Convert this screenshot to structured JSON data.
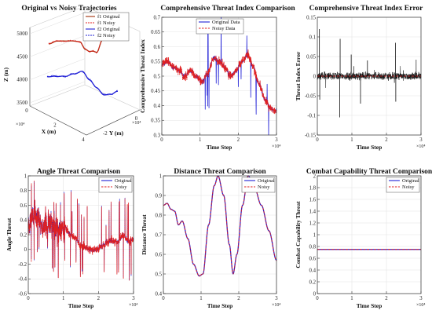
{
  "colors": {
    "blue": "#1f1fd6",
    "red": "#e02020",
    "darkred": "#a0300a",
    "black": "#111111",
    "grid": "#e4e4e4"
  },
  "chart_data": [
    {
      "id": "traj",
      "type": "line3d",
      "title": "Original vs Noisy Trajectories",
      "xlabel": "X (m)",
      "ylabel": "Y (m)",
      "zlabel": "Z (m)",
      "x_ticks": [
        "0",
        "2",
        "4"
      ],
      "x_exp": "×10⁴",
      "y_ticks": [
        "-2",
        "0"
      ],
      "y_exp": "×10⁴",
      "z_ticks": [
        "3500",
        "4000",
        "4500",
        "5000"
      ],
      "zlim": [
        3500,
        5000
      ],
      "legend": {
        "loc": "top-right",
        "entries": [
          "f1 Original",
          "f1 Noisy",
          "f2 Original",
          "f2 Noisy"
        ]
      },
      "series": [
        {
          "name": "f1 Original",
          "color": "darkred",
          "t": [
            0.0,
            0.15,
            0.28,
            0.42,
            0.55,
            0.65,
            0.72,
            0.78,
            0.85,
            0.95,
            1.0
          ],
          "z": [
            4780,
            4850,
            4860,
            4870,
            4860,
            4700,
            4660,
            4670,
            4650,
            4920,
            4970
          ]
        },
        {
          "name": "f1 Noisy",
          "color": "red",
          "t": [
            0.0,
            0.15,
            0.28,
            0.42,
            0.55,
            0.65,
            0.72,
            0.78,
            0.85,
            0.95,
            1.0
          ],
          "z": [
            4790,
            4860,
            4850,
            4880,
            4855,
            4710,
            4650,
            4680,
            4640,
            4930,
            4960
          ]
        },
        {
          "name": "f2 Original",
          "color": "blue",
          "t": [
            0.0,
            0.12,
            0.25,
            0.38,
            0.5,
            0.6,
            0.7,
            0.8,
            0.9,
            1.0
          ],
          "z": [
            4000,
            4050,
            4100,
            4200,
            4300,
            4150,
            4020,
            3900,
            3950,
            4050
          ]
        },
        {
          "name": "f2 Noisy",
          "color": "blue",
          "t": [
            0.0,
            0.12,
            0.25,
            0.38,
            0.5,
            0.6,
            0.7,
            0.8,
            0.9,
            1.0
          ],
          "z": [
            4010,
            4060,
            4090,
            4210,
            4290,
            4160,
            4010,
            3910,
            3940,
            4060
          ]
        }
      ]
    },
    {
      "id": "comp",
      "type": "line",
      "title": "Comprehensive Threat Index Comparison",
      "xlabel": "Time Step",
      "ylabel": "Comprehensive Threat Index",
      "xlim": [
        0,
        30000
      ],
      "ylim": [
        0.3,
        0.7
      ],
      "x_ticks": [
        "0",
        "1",
        "2",
        "3"
      ],
      "x_exp": "×10⁴",
      "y_ticks": [
        "0.3",
        "0.35",
        "0.4",
        "0.45",
        "0.5",
        "0.55",
        "0.6",
        "0.65",
        "0.7"
      ],
      "legend": {
        "loc": "top-center",
        "entries": [
          "Original Data",
          "Noisy Data"
        ]
      },
      "series": [
        {
          "name": "Original Data",
          "color": "blue",
          "x": [
            0,
            1500,
            3000,
            4500,
            6000,
            7500,
            9000,
            10500,
            12000,
            13500,
            15000,
            16500,
            18000,
            19500,
            21000,
            22500,
            24000,
            25500,
            27000,
            28500,
            30000
          ],
          "y": [
            0.54,
            0.55,
            0.53,
            0.52,
            0.5,
            0.52,
            0.5,
            0.48,
            0.51,
            0.56,
            0.55,
            0.53,
            0.5,
            0.52,
            0.55,
            0.57,
            0.53,
            0.47,
            0.42,
            0.39,
            0.38
          ]
        },
        {
          "name": "Noisy Data",
          "color": "red",
          "x": [
            0,
            1500,
            3000,
            4500,
            6000,
            7500,
            9000,
            10500,
            12000,
            13500,
            15000,
            16500,
            18000,
            19500,
            21000,
            22500,
            24000,
            25500,
            27000,
            28500,
            30000
          ],
          "y": [
            0.54,
            0.55,
            0.53,
            0.52,
            0.5,
            0.52,
            0.5,
            0.48,
            0.51,
            0.56,
            0.55,
            0.53,
            0.5,
            0.52,
            0.55,
            0.57,
            0.53,
            0.47,
            0.42,
            0.39,
            0.38
          ]
        }
      ]
    },
    {
      "id": "err",
      "type": "line",
      "title": "Comprehensive Threat Index Error",
      "xlabel": "Time Step",
      "ylabel": "Threat Index Error",
      "xlim": [
        0,
        30000
      ],
      "ylim": [
        -0.15,
        0.15
      ],
      "x_ticks": [
        "0",
        "1",
        "2",
        "3"
      ],
      "x_exp": "×10⁴",
      "y_ticks": [
        "-0.15",
        "-0.1",
        "-0.05",
        "0",
        "0.05",
        "0.1",
        "0.15"
      ],
      "series": [
        {
          "name": "Error",
          "color": "black",
          "x": [
            0,
            30000
          ],
          "y": [
            0,
            0
          ]
        }
      ]
    },
    {
      "id": "angle",
      "type": "line",
      "title": "Angle Threat Comparison",
      "xlabel": "Time Step",
      "ylabel": "Angle Threat",
      "xlim": [
        0,
        30000
      ],
      "ylim": [
        -0.6,
        1.0
      ],
      "x_ticks": [
        "0",
        "1",
        "2",
        "3"
      ],
      "x_exp": "×10⁴",
      "y_ticks": [
        "-0.6",
        "-0.4",
        "-0.2",
        "0",
        "0.2",
        "0.4",
        "0.6",
        "0.8",
        "1"
      ],
      "legend": {
        "loc": "top-right",
        "entries": [
          "Original",
          "Noisy"
        ]
      },
      "series": [
        {
          "name": "Original",
          "color": "blue",
          "x": [
            0,
            1500,
            3000,
            4500,
            6000,
            7500,
            9000,
            10500,
            12000,
            13500,
            15000,
            16500,
            18000,
            19500,
            21000,
            22500,
            24000,
            25500,
            27000,
            28500,
            30000
          ],
          "y": [
            0.3,
            0.5,
            0.4,
            0.3,
            0.35,
            0.3,
            0.25,
            0.3,
            0.2,
            0.15,
            0.05,
            0.02,
            0.0,
            0.0,
            0.05,
            0.1,
            0.12,
            0.1,
            0.2,
            0.1,
            0.15
          ]
        },
        {
          "name": "Noisy",
          "color": "red",
          "x": [
            0,
            1500,
            3000,
            4500,
            6000,
            7500,
            9000,
            10500,
            12000,
            13500,
            15000,
            16500,
            18000,
            19500,
            21000,
            22500,
            24000,
            25500,
            27000,
            28500,
            30000
          ],
          "y": [
            0.3,
            0.5,
            0.4,
            0.3,
            0.35,
            0.3,
            0.25,
            0.3,
            0.2,
            0.15,
            0.05,
            0.02,
            0.0,
            0.0,
            0.05,
            0.1,
            0.12,
            0.1,
            0.2,
            0.1,
            0.15
          ]
        }
      ]
    },
    {
      "id": "dist",
      "type": "line",
      "title": "Distance Threat Comparison",
      "xlabel": "Time Step",
      "ylabel": "Distance Threat",
      "xlim": [
        0,
        30000
      ],
      "ylim": [
        0.4,
        1.0
      ],
      "x_ticks": [
        "0",
        "1",
        "2",
        "3"
      ],
      "x_exp": "×10⁴",
      "y_ticks": [
        "0.4",
        "0.5",
        "0.6",
        "0.7",
        "0.8",
        "0.9",
        "1"
      ],
      "legend": {
        "loc": "top-right",
        "entries": [
          "Original",
          "Noisy"
        ]
      },
      "series": [
        {
          "name": "Original",
          "color": "blue",
          "x": [
            0,
            1000,
            2000,
            3000,
            4000,
            5000,
            6500,
            8000,
            9500,
            10500,
            12000,
            13500,
            14500,
            16000,
            17500,
            18500,
            19500,
            21000,
            22500,
            24000,
            26000,
            28000,
            30000
          ],
          "y": [
            0.85,
            0.86,
            0.83,
            0.82,
            0.75,
            0.77,
            0.68,
            0.55,
            0.49,
            0.5,
            0.75,
            0.95,
            1.0,
            0.9,
            0.65,
            0.5,
            0.6,
            0.85,
            1.0,
            0.95,
            0.85,
            0.72,
            0.57
          ]
        },
        {
          "name": "Noisy",
          "color": "red",
          "x": [
            0,
            1000,
            2000,
            3000,
            4000,
            5000,
            6500,
            8000,
            9500,
            10500,
            12000,
            13500,
            14500,
            16000,
            17500,
            18500,
            19500,
            21000,
            22500,
            24000,
            26000,
            28000,
            30000
          ],
          "y": [
            0.85,
            0.86,
            0.83,
            0.82,
            0.75,
            0.77,
            0.68,
            0.55,
            0.49,
            0.5,
            0.75,
            0.95,
            1.0,
            0.9,
            0.65,
            0.5,
            0.6,
            0.85,
            1.0,
            0.95,
            0.85,
            0.72,
            0.57
          ]
        }
      ]
    },
    {
      "id": "combat",
      "type": "line",
      "title": "Combat Capability Threat Comparison",
      "xlabel": "Time Step",
      "ylabel": "Combat Capability Threat",
      "xlim": [
        0,
        30000
      ],
      "ylim": [
        0,
        2
      ],
      "x_ticks": [
        "0",
        "1",
        "2",
        "3"
      ],
      "x_exp": "×10⁴",
      "y_ticks": [
        "0",
        "0.2",
        "0.4",
        "0.6",
        "0.8",
        "1",
        "1.2",
        "1.4",
        "1.6",
        "1.8",
        "2"
      ],
      "legend": {
        "loc": "top-right",
        "entries": [
          "Original",
          "Noisy"
        ]
      },
      "series": [
        {
          "name": "Original",
          "color": "blue",
          "x": [
            0,
            30000
          ],
          "y": [
            0.75,
            0.75
          ]
        },
        {
          "name": "Noisy",
          "color": "red",
          "x": [
            0,
            30000
          ],
          "y": [
            0.75,
            0.75
          ]
        }
      ]
    }
  ]
}
